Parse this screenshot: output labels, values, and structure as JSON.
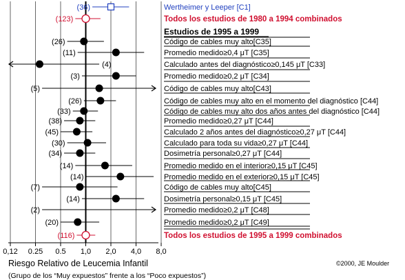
{
  "chart_data": {
    "type": "forest",
    "scale": "log",
    "xlim": [
      0.12,
      8.0
    ],
    "xticks": [
      "0,12",
      "0.25",
      "0.5",
      "1,0",
      "2,0",
      "4,0",
      "8,0"
    ],
    "xtick_values": [
      0.125,
      0.25,
      0.5,
      1,
      2,
      4,
      8
    ],
    "xlabel": "Riesgo Relativo de Leucemia Infantil",
    "subtitle": "(Grupo de los “Muy expuestos” frente a los “Poco expuestos”)",
    "credit": "©2000, JE Moulder",
    "section_header": "Estudios de 1995 a 1999",
    "colors": {
      "blue": "#1f3fbf",
      "red": "#d01030",
      "black": "#000000"
    },
    "rows": [
      {
        "n": "(36)",
        "label": "Wertheimer y Leeper [C1]",
        "rr": 2.0,
        "lo": 1.2,
        "hi": 3.3,
        "marker": "square-open",
        "color": "blue"
      },
      {
        "n": "(123)",
        "label": "Todos los estudios de 1980 a 1994 combinados",
        "rr": 1.0,
        "lo": 0.75,
        "hi": 1.5,
        "marker": "circle-open",
        "color": "red",
        "bold": true
      },
      {
        "n": "(26)",
        "label": "Código de cables muy alto[C35]",
        "rr": 0.95,
        "lo": 0.6,
        "hi": 1.65,
        "marker": "dot"
      },
      {
        "n": "(11)",
        "label": "Promedio medido≥0,4 μT [C35]",
        "rr": 2.3,
        "lo": 0.8,
        "hi": 5.0,
        "marker": "dot"
      },
      {
        "n": "(4)",
        "label": "Calculado antes del diagnóstico≥0,145 μT [C33]",
        "rr": 0.28,
        "lo": 0.05,
        "hi": 1.45,
        "marker": "dot",
        "left_arrow": true,
        "n_right": true
      },
      {
        "n": "(3)",
        "label": "Promedio medido≥0,2 μT [C34]",
        "rr": 2.3,
        "lo": 0.9,
        "hi": 4.0,
        "marker": "dot"
      },
      {
        "n": "(5)",
        "label": "Código de cables muy alto[C43]",
        "rr": 1.45,
        "lo": 0.3,
        "hi": 8.0,
        "marker": "dot",
        "right_arrow": true
      },
      {
        "n": "(26)",
        "label": "Código de cables muy alto en el momento del diagnóstico [C44]",
        "rr": 1.5,
        "lo": 0.95,
        "hi": 2.3,
        "marker": "dot"
      },
      {
        "n": "(33)",
        "label": "Código de cables muy alto dos años antes del diagnóstico [C44]",
        "rr": 0.95,
        "lo": 0.7,
        "hi": 1.4,
        "marker": "dot"
      },
      {
        "n": "(38)",
        "label": "Promedio medido≥0,27 μT [C44]",
        "rr": 0.85,
        "lo": 0.55,
        "hi": 1.3,
        "marker": "dot"
      },
      {
        "n": "(45)",
        "label": "Calculado 2 años antes del diagnóstico≥0,27 μT [C44]",
        "rr": 0.78,
        "lo": 0.5,
        "hi": 1.2,
        "marker": "dot"
      },
      {
        "n": "(30)",
        "label": "Calculado para toda su vida≥0,27 μT [C44]",
        "rr": 1.05,
        "lo": 0.6,
        "hi": 1.75,
        "marker": "dot"
      },
      {
        "n": "(34)",
        "label": "Dosimetría personal≥0,27 μT [C44]",
        "rr": 0.85,
        "lo": 0.55,
        "hi": 1.3,
        "marker": "dot"
      },
      {
        "n": "(14)",
        "label": "Promedio medido en el interior≥0,15 μT [C45]",
        "rr": 1.7,
        "lo": 0.75,
        "hi": 3.6,
        "marker": "dot"
      },
      {
        "n": "(14)",
        "label": "Promedio medido en el exterior≥0,15 μT [C45]",
        "rr": 2.6,
        "lo": 1.0,
        "hi": 6.5,
        "marker": "dot"
      },
      {
        "n": "(7)",
        "label": "Código de cables muy alto[C45]",
        "rr": 0.85,
        "lo": 0.3,
        "hi": 2.4,
        "marker": "dot"
      },
      {
        "n": "(14)",
        "label": "Dosimetría personal≥0,15 μT [C45]",
        "rr": 2.3,
        "lo": 0.9,
        "hi": 5.0,
        "marker": "dot"
      },
      {
        "n": "(2)",
        "label": "Promedio medido≥0,2 μT [C48]",
        "rr": null,
        "lo": 0.3,
        "hi": 8.0,
        "marker": "none",
        "right_arrow": true
      },
      {
        "n": "(20)",
        "label": "Promedio medido≥0,2 μT [C49]",
        "rr": 0.8,
        "lo": 0.5,
        "hi": 1.45,
        "marker": "dot"
      },
      {
        "n": "(116)",
        "label": "Todos los estudios de 1995 a 1999 combinados",
        "rr": 1.0,
        "lo": 0.78,
        "hi": 1.3,
        "marker": "circle-open",
        "color": "red",
        "bold": true
      }
    ]
  }
}
